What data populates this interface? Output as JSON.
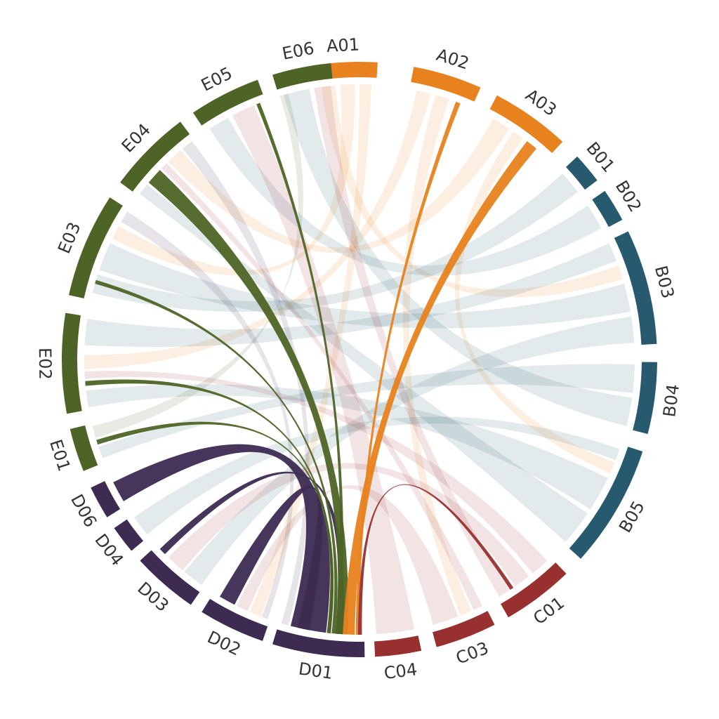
{
  "colors": {
    "A": "#e8821e",
    "B": "#275a6e",
    "C": "#983030",
    "D": "#3d2b52",
    "E": "#4e6426",
    "background": "#ffffff"
  },
  "segments": [
    {
      "id": "A01",
      "label": "A01",
      "group": "A",
      "start": -9.5,
      "end": 3.5
    },
    {
      "id": "A02",
      "label": "A02",
      "group": "A",
      "start": 10.5,
      "end": 24.0
    },
    {
      "id": "A03",
      "label": "A03",
      "group": "A",
      "start": 27.5,
      "end": 43.0
    },
    {
      "id": "B01",
      "label": "B01",
      "group": "B",
      "start": 47.0,
      "end": 53.0
    },
    {
      "id": "B02",
      "label": "B02",
      "group": "B",
      "start": 55.5,
      "end": 62.0
    },
    {
      "id": "B03",
      "label": "B03",
      "group": "B",
      "start": 64.5,
      "end": 87.0
    },
    {
      "id": "B04",
      "label": "B04",
      "group": "B",
      "start": 90.5,
      "end": 104.5
    },
    {
      "id": "B05",
      "label": "B05",
      "group": "B",
      "start": 108.0,
      "end": 132.0
    },
    {
      "id": "C01",
      "label": "C01",
      "group": "C",
      "start": 136.0,
      "end": 150.0
    },
    {
      "id": "C03",
      "label": "C03",
      "group": "C",
      "start": 153.0,
      "end": 165.0
    },
    {
      "id": "C04",
      "label": "C04",
      "group": "C",
      "start": 168.0,
      "end": 177.0
    },
    {
      "id": "D01",
      "label": "D01",
      "group": "D",
      "start": 179.0,
      "end": 197.0
    },
    {
      "id": "D02",
      "label": "D02",
      "group": "D",
      "start": 199.0,
      "end": 212.0
    },
    {
      "id": "D03",
      "label": "D03",
      "group": "D",
      "start": 214.5,
      "end": 227.5
    },
    {
      "id": "D04",
      "label": "D04",
      "group": "D",
      "start": 230.0,
      "end": 235.5
    },
    {
      "id": "D06",
      "label": "D06",
      "group": "D",
      "start": 238.0,
      "end": 244.5
    },
    {
      "id": "E01",
      "label": "E01",
      "group": "E",
      "start": 248.0,
      "end": 256.5
    },
    {
      "id": "E02",
      "label": "E02",
      "group": "E",
      "start": 259.5,
      "end": 279.0
    },
    {
      "id": "E03",
      "label": "E03",
      "group": "E",
      "start": 282.5,
      "end": 303.0
    },
    {
      "id": "E04",
      "label": "E04",
      "group": "E",
      "start": 306.5,
      "end": 323.0
    },
    {
      "id": "E05",
      "label": "E05",
      "group": "E",
      "start": 326.0,
      "end": 340.0
    },
    {
      "id": "E06",
      "label": "E06",
      "group": "E",
      "start": 343.0,
      "end": 354.5
    }
  ],
  "links": [
    {
      "source": "D01",
      "sa": 187.0,
      "sb": 194.5,
      "target": "D06",
      "ta": 239.0,
      "tb": 243.5,
      "highlight": true
    },
    {
      "source": "D01",
      "sa": 183.5,
      "sb": 185.0,
      "target": "D03",
      "ta": 225.0,
      "tb": 226.5,
      "highlight": true
    },
    {
      "source": "D01",
      "sa": 190.5,
      "sb": 193.0,
      "target": "D02",
      "ta": 207.0,
      "tb": 210.5,
      "highlight": true
    },
    {
      "source": "D01",
      "sa": 182.5,
      "sb": 185.0,
      "target": "E04",
      "ta": 310.0,
      "tb": 313.5,
      "highlight": true
    },
    {
      "source": "D01",
      "sa": 184.0,
      "sb": 185.0,
      "target": "E05",
      "ta": 338.0,
      "tb": 338.8,
      "highlight": true
    },
    {
      "source": "D01",
      "sa": 185.0,
      "sb": 185.8,
      "target": "E03",
      "ta": 286.0,
      "tb": 286.8,
      "highlight": true
    },
    {
      "source": "D01",
      "sa": 186.0,
      "sb": 186.8,
      "target": "E02",
      "ta": 264.5,
      "tb": 265.5,
      "highlight": true
    },
    {
      "source": "D01",
      "sa": 186.0,
      "sb": 186.8,
      "target": "E01",
      "ta": 252.0,
      "tb": 253.0,
      "highlight": true
    },
    {
      "source": "D01",
      "sa": 181.0,
      "sb": 183.5,
      "target": "A03",
      "ta": 37.5,
      "tb": 40.0,
      "highlight": true
    },
    {
      "source": "D01",
      "sa": 180.0,
      "sb": 180.8,
      "target": "A02",
      "ta": 20.5,
      "tb": 21.5,
      "highlight": true
    },
    {
      "source": "D01",
      "sa": 179.5,
      "sb": 180.3,
      "target": "C01",
      "ta": 146.0,
      "tb": 146.8,
      "highlight": true
    },
    {
      "source": "A01",
      "sa": -8.0,
      "sb": -5.0,
      "target": "B03",
      "ta": 70.0,
      "tb": 73.0,
      "highlight": false
    },
    {
      "source": "A01",
      "sa": -4.0,
      "sb": -1.0,
      "target": "E03",
      "ta": 296.0,
      "tb": 299.0,
      "highlight": false
    },
    {
      "source": "A01",
      "sa": 0.0,
      "sb": 2.5,
      "target": "D02",
      "ta": 201.0,
      "tb": 203.5,
      "highlight": false
    },
    {
      "source": "A02",
      "sa": 12.0,
      "sb": 15.0,
      "target": "E02",
      "ta": 268.0,
      "tb": 271.0,
      "highlight": false
    },
    {
      "source": "A02",
      "sa": 16.0,
      "sb": 19.0,
      "target": "C03",
      "ta": 156.0,
      "tb": 158.5,
      "highlight": false
    },
    {
      "source": "A03",
      "sa": 29.0,
      "sb": 33.0,
      "target": "E04",
      "ta": 316.0,
      "tb": 319.5,
      "highlight": false
    },
    {
      "source": "A03",
      "sa": 34.0,
      "sb": 36.5,
      "target": "B05",
      "ta": 112.0,
      "tb": 114.5,
      "highlight": false
    },
    {
      "source": "B01",
      "sa": 47.5,
      "sb": 52.5,
      "target": "E03",
      "ta": 284.0,
      "tb": 288.0,
      "highlight": false
    },
    {
      "source": "B02",
      "sa": 56.0,
      "sb": 61.5,
      "target": "E05",
      "ta": 327.0,
      "tb": 331.5,
      "highlight": false
    },
    {
      "source": "B03",
      "sa": 65.0,
      "sb": 69.0,
      "target": "E02",
      "ta": 273.0,
      "tb": 278.5,
      "highlight": false
    },
    {
      "source": "B03",
      "sa": 74.0,
      "sb": 80.0,
      "target": "E03",
      "ta": 289.0,
      "tb": 295.0,
      "highlight": false
    },
    {
      "source": "B03",
      "sa": 81.0,
      "sb": 86.5,
      "target": "D03",
      "ta": 215.0,
      "tb": 219.5,
      "highlight": false
    },
    {
      "source": "B04",
      "sa": 91.0,
      "sb": 97.0,
      "target": "E01",
      "ta": 249.0,
      "tb": 251.5,
      "highlight": false
    },
    {
      "source": "B04",
      "sa": 98.0,
      "sb": 104.0,
      "target": "E06",
      "ta": 344.0,
      "tb": 349.5,
      "highlight": false
    },
    {
      "source": "B05",
      "sa": 109.0,
      "sb": 111.5,
      "target": "D04",
      "ta": 230.5,
      "tb": 235.0,
      "highlight": false
    },
    {
      "source": "B05",
      "sa": 115.5,
      "sb": 123.0,
      "target": "E02",
      "ta": 260.0,
      "tb": 263.5,
      "highlight": false
    },
    {
      "source": "B05",
      "sa": 124.0,
      "sb": 131.5,
      "target": "E04",
      "ta": 307.0,
      "tb": 309.5,
      "highlight": false
    },
    {
      "source": "C01",
      "sa": 137.0,
      "sb": 141.0,
      "target": "E02",
      "ta": 266.0,
      "tb": 267.5,
      "highlight": false
    },
    {
      "source": "C01",
      "sa": 142.0,
      "sb": 145.5,
      "target": "D03",
      "ta": 220.0,
      "tb": 224.0,
      "highlight": false
    },
    {
      "source": "C01",
      "sa": 147.0,
      "sb": 149.5,
      "target": "E06",
      "ta": 350.5,
      "tb": 354.0,
      "highlight": false
    },
    {
      "source": "C03",
      "sa": 153.5,
      "sb": 155.5,
      "target": "E04",
      "ta": 314.0,
      "tb": 315.5,
      "highlight": false
    },
    {
      "source": "C03",
      "sa": 159.0,
      "sb": 164.5,
      "target": "D02",
      "ta": 204.0,
      "tb": 206.5,
      "highlight": false
    },
    {
      "source": "C04",
      "sa": 168.5,
      "sb": 176.5,
      "target": "E05",
      "ta": 332.5,
      "tb": 337.5,
      "highlight": false
    },
    {
      "source": "D01",
      "sa": 195.0,
      "sb": 196.5,
      "target": "E04",
      "ta": 320.0,
      "tb": 322.5,
      "highlight": false
    },
    {
      "source": "D02",
      "sa": 199.5,
      "sb": 200.8,
      "target": "E03",
      "ta": 300.0,
      "tb": 302.5,
      "highlight": false
    },
    {
      "source": "E01",
      "sa": 253.5,
      "sb": 256.0,
      "target": "E06",
      "ta": 345.0,
      "tb": 343.2,
      "highlight": false
    }
  ]
}
